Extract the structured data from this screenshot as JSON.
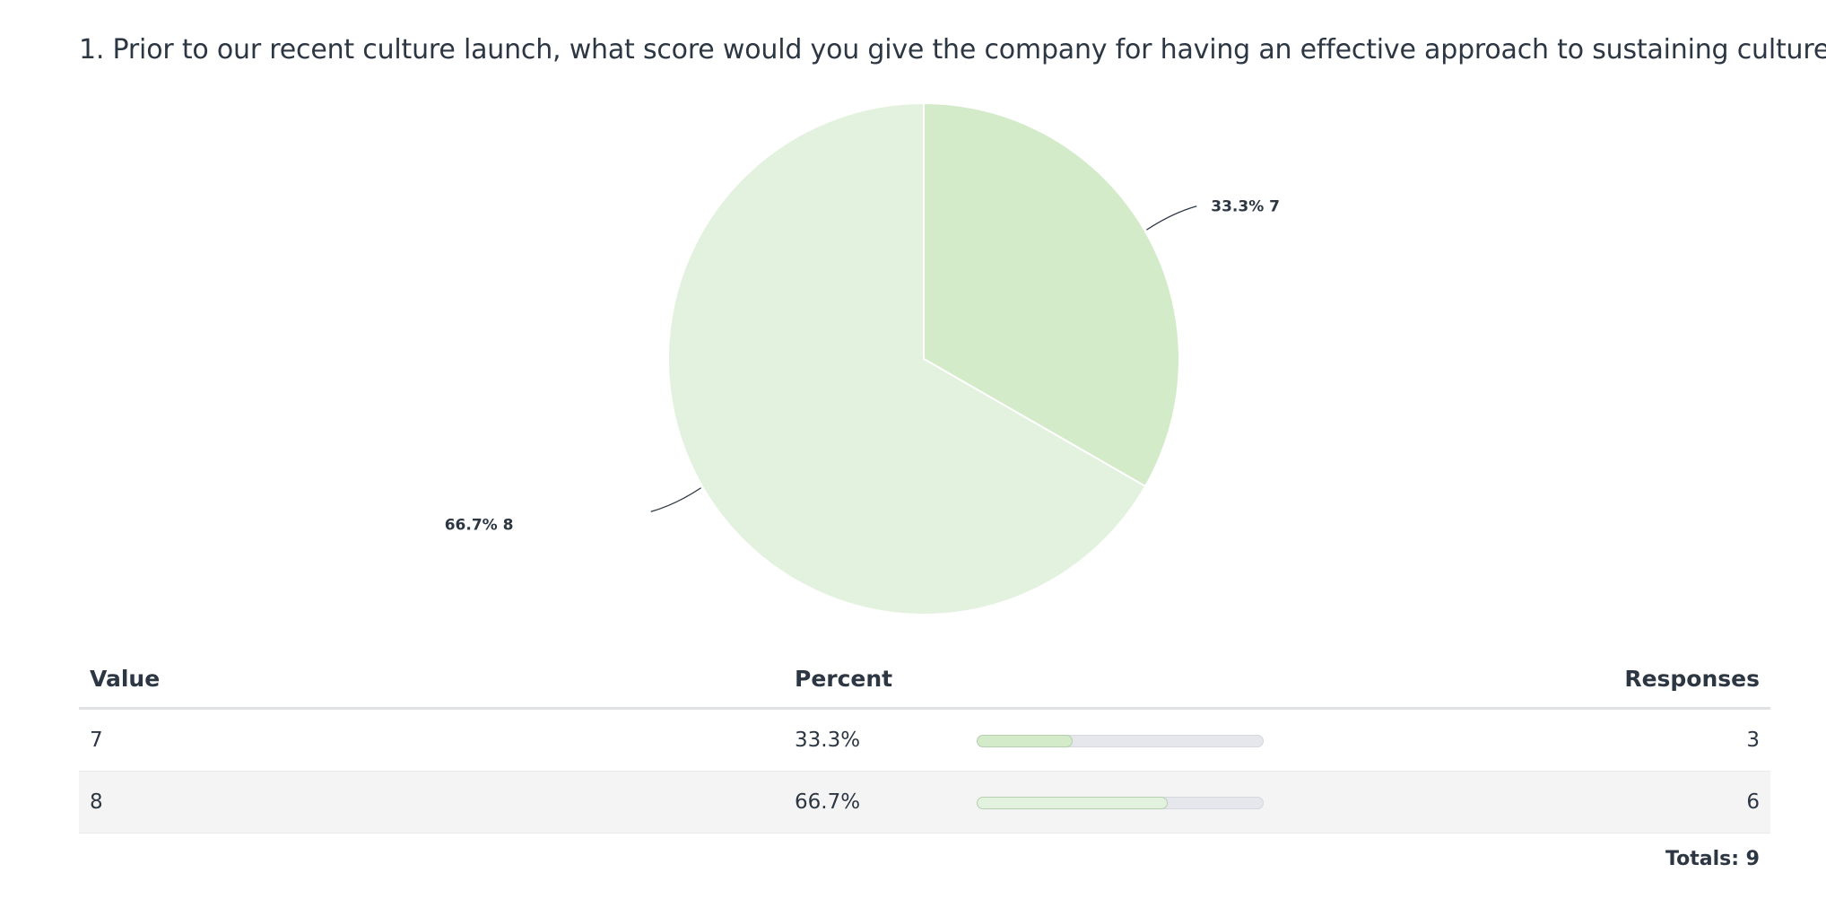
{
  "question": {
    "title": "1. Prior to our recent culture launch, what score would you give the company for having an effective approach to sustaining culture?"
  },
  "chart_data": {
    "type": "pie",
    "slices": [
      {
        "label": "33.3% 7",
        "category": "7",
        "percent": 33.3,
        "responses": 3,
        "color": "#d3ebc9"
      },
      {
        "label": "66.7% 8",
        "category": "8",
        "percent": 66.7,
        "responses": 6,
        "color": "#e2f2de"
      }
    ]
  },
  "table": {
    "headers": {
      "value": "Value",
      "percent": "Percent",
      "responses": "Responses"
    },
    "rows": [
      {
        "value": "7",
        "percent_text": "33.3%",
        "fraction": 0.333,
        "responses": "3",
        "bar_color": "#d3ebc9"
      },
      {
        "value": "8",
        "percent_text": "66.7%",
        "fraction": 0.667,
        "responses": "6",
        "bar_color": "#e2f2de"
      }
    ],
    "totals": "Totals: 9"
  }
}
